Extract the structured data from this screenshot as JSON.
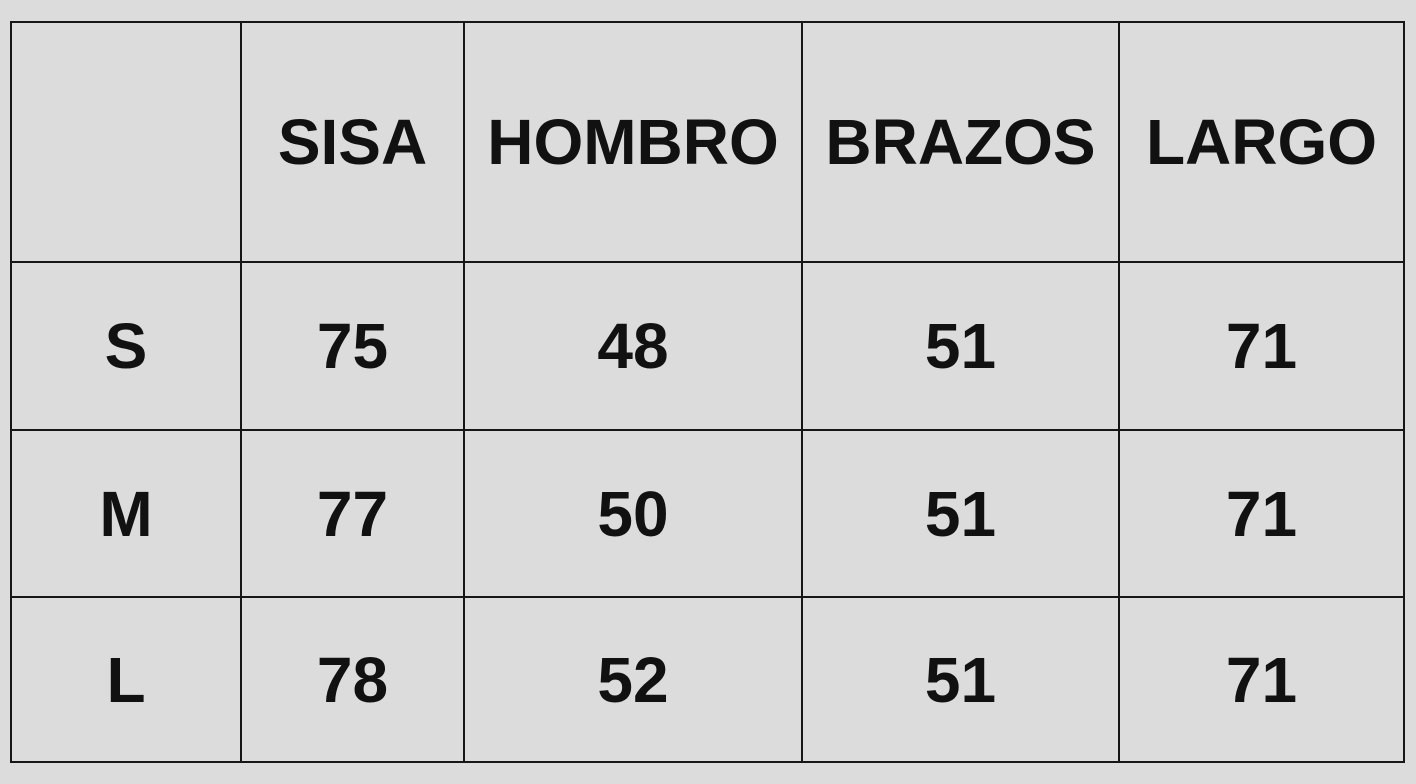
{
  "table": {
    "headers": [
      "",
      "SISA",
      "HOMBRO",
      "BRAZOS",
      "LARGO"
    ],
    "rows": [
      {
        "size": "S",
        "values": [
          "75",
          "48",
          "51",
          "71"
        ]
      },
      {
        "size": "M",
        "values": [
          "77",
          "50",
          "51",
          "71"
        ]
      },
      {
        "size": "L",
        "values": [
          "78",
          "52",
          "51",
          "71"
        ]
      }
    ]
  },
  "colors": {
    "background": "#dcdcdc",
    "border": "#161616",
    "text": "#111111"
  }
}
